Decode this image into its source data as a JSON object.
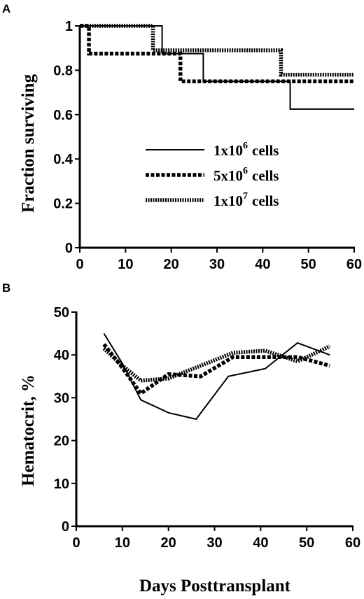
{
  "chart_data": [
    {
      "type": "line",
      "subtype": "step",
      "panel_label": "A",
      "ylabel": "Fraction surviving",
      "xlabel": "",
      "xlim": [
        0,
        60
      ],
      "ylim": [
        0,
        1
      ],
      "xticks": [
        0,
        10,
        20,
        30,
        40,
        50,
        60
      ],
      "yticks": [
        "0",
        "0.2",
        "0.4",
        "0.6",
        "0.8",
        "1"
      ],
      "ytick_values": [
        0,
        0.2,
        0.4,
        0.6,
        0.8,
        1
      ],
      "legend_position": "center-right",
      "series": [
        {
          "name_base": "1x10",
          "name_exp": "6",
          "name_unit": "cells",
          "style": "solid",
          "x": [
            0,
            18,
            27,
            46,
            60
          ],
          "y": [
            1,
            0.875,
            0.75,
            0.625,
            0.625
          ]
        },
        {
          "name_base": "5x10",
          "name_exp": "6",
          "name_unit": "cells",
          "style": "dashed",
          "x": [
            0,
            2,
            22,
            60
          ],
          "y": [
            1,
            0.875,
            0.75,
            0.75
          ]
        },
        {
          "name_base": "1x10",
          "name_exp": "7",
          "name_unit": "cells",
          "style": "dotted",
          "x": [
            0,
            16,
            44,
            60
          ],
          "y": [
            1,
            0.89,
            0.78,
            0.78
          ]
        }
      ]
    },
    {
      "type": "line",
      "panel_label": "B",
      "ylabel": "Hematocrit, %",
      "xlabel": "Days  Posttransplant",
      "xlim": [
        0,
        60
      ],
      "ylim": [
        0,
        50
      ],
      "xticks": [
        0,
        10,
        20,
        30,
        40,
        50,
        60
      ],
      "yticks": [
        0,
        10,
        20,
        30,
        40,
        50
      ],
      "series": [
        {
          "style": "solid",
          "x": [
            6,
            10,
            14,
            20,
            26,
            33,
            41,
            48,
            55
          ],
          "y": [
            45,
            38,
            29.5,
            26.5,
            25,
            35,
            36.8,
            42.8,
            40
          ]
        },
        {
          "style": "dashed",
          "x": [
            6,
            10,
            14,
            20,
            27,
            34,
            41,
            48,
            55
          ],
          "y": [
            42.5,
            37,
            31,
            35.5,
            35,
            39.5,
            39.5,
            39.5,
            37.5
          ]
        },
        {
          "style": "dotted",
          "x": [
            6,
            10,
            14,
            20,
            27,
            34,
            41,
            48,
            55
          ],
          "y": [
            41.5,
            37.5,
            34,
            34.5,
            37.5,
            40.5,
            41,
            38.5,
            42
          ]
        }
      ]
    }
  ]
}
